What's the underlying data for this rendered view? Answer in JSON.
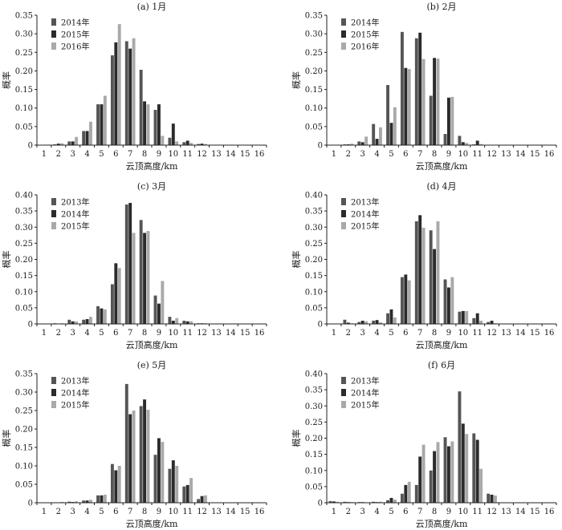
{
  "xlabel": "云顶高度/km",
  "ylabel": "概率",
  "colors": [
    "#555555",
    "#2b2b2b",
    "#a9a9a9"
  ],
  "chart_data": [
    {
      "type": "bar",
      "title": "(a) 1月",
      "categories": [
        "1",
        "2",
        "3",
        "4",
        "5",
        "6",
        "7",
        "8",
        "9",
        "10",
        "11",
        "12",
        "13",
        "14",
        "15",
        "16"
      ],
      "ylim": [
        0,
        0.35
      ],
      "yticks": [
        "0",
        "0.05",
        "0.10",
        "0.15",
        "0.20",
        "0.25",
        "0.30",
        "0.35"
      ],
      "series": [
        {
          "name": "2014年",
          "values": [
            0.001,
            0.002,
            0.01,
            0.038,
            0.11,
            0.242,
            0.28,
            0.203,
            0.095,
            0.02,
            0.008,
            0.003,
            0,
            0,
            0,
            0
          ]
        },
        {
          "name": "2015年",
          "values": [
            0,
            0.004,
            0.01,
            0.038,
            0.11,
            0.277,
            0.26,
            0.118,
            0.11,
            0.058,
            0.012,
            0.004,
            0,
            0,
            0,
            0
          ]
        },
        {
          "name": "2016年",
          "values": [
            0.001,
            0.005,
            0.022,
            0.063,
            0.133,
            0.326,
            0.288,
            0.11,
            0.025,
            0.01,
            0.006,
            0.003,
            0,
            0,
            0,
            0
          ]
        }
      ]
    },
    {
      "type": "bar",
      "title": "(b) 2月",
      "categories": [
        "1",
        "2",
        "3",
        "4",
        "5",
        "6",
        "7",
        "8",
        "9",
        "10",
        "11",
        "12",
        "13",
        "14",
        "15",
        "16"
      ],
      "ylim": [
        0,
        0.35
      ],
      "yticks": [
        "0",
        "0.05",
        "0.10",
        "0.15",
        "0.20",
        "0.25",
        "0.30",
        "0.35"
      ],
      "series": [
        {
          "name": "2014年",
          "values": [
            0.001,
            0.002,
            0.01,
            0.057,
            0.162,
            0.305,
            0.288,
            0.133,
            0.03,
            0.025,
            0.002,
            0,
            0,
            0,
            0,
            0
          ]
        },
        {
          "name": "2015年",
          "values": [
            0,
            0.002,
            0.008,
            0.017,
            0.06,
            0.208,
            0.303,
            0.235,
            0.128,
            0.008,
            0.012,
            0,
            0,
            0,
            0,
            0
          ]
        },
        {
          "name": "2016年",
          "values": [
            0.001,
            0.004,
            0.023,
            0.048,
            0.102,
            0.205,
            0.232,
            0.233,
            0.13,
            0.006,
            0.003,
            0,
            0,
            0,
            0,
            0
          ]
        }
      ]
    },
    {
      "type": "bar",
      "title": "(c) 3月",
      "categories": [
        "1",
        "2",
        "3",
        "4",
        "5",
        "6",
        "7",
        "8",
        "9",
        "10",
        "11",
        "12",
        "13",
        "14",
        "15",
        "16"
      ],
      "ylim": [
        0,
        0.4
      ],
      "yticks": [
        "0",
        "0.05",
        "0.10",
        "0.15",
        "0.20",
        "0.25",
        "0.30",
        "0.35",
        "0.40"
      ],
      "series": [
        {
          "name": "2013年",
          "values": [
            0,
            0.002,
            0.013,
            0.013,
            0.055,
            0.123,
            0.37,
            0.322,
            0.088,
            0.022,
            0.01,
            0.002,
            0,
            0,
            0,
            0
          ]
        },
        {
          "name": "2014年",
          "values": [
            0,
            0.001,
            0.008,
            0.015,
            0.048,
            0.188,
            0.375,
            0.282,
            0.063,
            0.01,
            0.008,
            0.002,
            0,
            0,
            0,
            0
          ]
        },
        {
          "name": "2015年",
          "values": [
            0,
            0.002,
            0.008,
            0.022,
            0.045,
            0.173,
            0.282,
            0.288,
            0.133,
            0.018,
            0.008,
            0.002,
            0,
            0,
            0,
            0
          ]
        }
      ]
    },
    {
      "type": "bar",
      "title": "(d) 4月",
      "categories": [
        "1",
        "2",
        "3",
        "4",
        "5",
        "6",
        "7",
        "8",
        "9",
        "10",
        "11",
        "12",
        "13",
        "14",
        "15",
        "16"
      ],
      "ylim": [
        0,
        0.4
      ],
      "yticks": [
        "0",
        "0.05",
        "0.10",
        "0.15",
        "0.20",
        "0.25",
        "0.30",
        "0.35",
        "0.40"
      ],
      "series": [
        {
          "name": "2013年",
          "values": [
            0,
            0.013,
            0.006,
            0.01,
            0.033,
            0.145,
            0.318,
            0.29,
            0.138,
            0.038,
            0.018,
            0.006,
            0,
            0,
            0,
            0
          ]
        },
        {
          "name": "2014年",
          "values": [
            0,
            0.004,
            0.01,
            0.012,
            0.045,
            0.153,
            0.337,
            0.232,
            0.113,
            0.04,
            0.033,
            0.01,
            0,
            0,
            0,
            0
          ]
        },
        {
          "name": "2015年",
          "values": [
            0,
            0.002,
            0.008,
            0.005,
            0.02,
            0.135,
            0.298,
            0.318,
            0.145,
            0.04,
            0.01,
            0.002,
            0,
            0,
            0,
            0
          ]
        }
      ]
    },
    {
      "type": "bar",
      "title": "(e) 5月",
      "categories": [
        "1",
        "2",
        "3",
        "4",
        "5",
        "6",
        "7",
        "8",
        "9",
        "10",
        "11",
        "12",
        "13",
        "14",
        "15",
        "16"
      ],
      "ylim": [
        0,
        0.35
      ],
      "yticks": [
        "0",
        "0.05",
        "0.10",
        "0.15",
        "0.20",
        "0.25",
        "0.30",
        "0.35"
      ],
      "series": [
        {
          "name": "2013年",
          "values": [
            0.001,
            0.001,
            0.003,
            0.006,
            0.02,
            0.105,
            0.322,
            0.262,
            0.13,
            0.092,
            0.044,
            0.01,
            0,
            0,
            0,
            0
          ]
        },
        {
          "name": "2014年",
          "values": [
            0,
            0.001,
            0.002,
            0.006,
            0.02,
            0.088,
            0.24,
            0.28,
            0.175,
            0.115,
            0.048,
            0.018,
            0,
            0,
            0,
            0
          ]
        },
        {
          "name": "2015年",
          "values": [
            0,
            0.002,
            0.004,
            0.008,
            0.022,
            0.1,
            0.25,
            0.252,
            0.165,
            0.1,
            0.067,
            0.02,
            0,
            0,
            0,
            0
          ]
        }
      ]
    },
    {
      "type": "bar",
      "title": "(f) 6月",
      "categories": [
        "1",
        "2",
        "3",
        "4",
        "5",
        "6",
        "7",
        "8",
        "9",
        "10",
        "11",
        "12",
        "13",
        "14",
        "15",
        "16"
      ],
      "ylim": [
        0,
        0.4
      ],
      "yticks": [
        "0",
        "0.05",
        "0.10",
        "0.15",
        "0.20",
        "0.25",
        "0.30",
        "0.35",
        "0.40"
      ],
      "series": [
        {
          "name": "2013年",
          "values": [
            0.005,
            0.003,
            0.002,
            0.003,
            0.008,
            0.028,
            0.055,
            0.1,
            0.203,
            0.345,
            0.215,
            0.028,
            0,
            0,
            0,
            0
          ]
        },
        {
          "name": "2014年",
          "values": [
            0.004,
            0.002,
            0.002,
            0.002,
            0.015,
            0.055,
            0.143,
            0.16,
            0.175,
            0.245,
            0.195,
            0.025,
            0,
            0,
            0,
            0
          ]
        },
        {
          "name": "2015年",
          "values": [
            0.003,
            0.002,
            0.001,
            0.003,
            0.01,
            0.065,
            0.18,
            0.188,
            0.19,
            0.213,
            0.105,
            0.022,
            0,
            0,
            0,
            0
          ]
        }
      ]
    }
  ]
}
